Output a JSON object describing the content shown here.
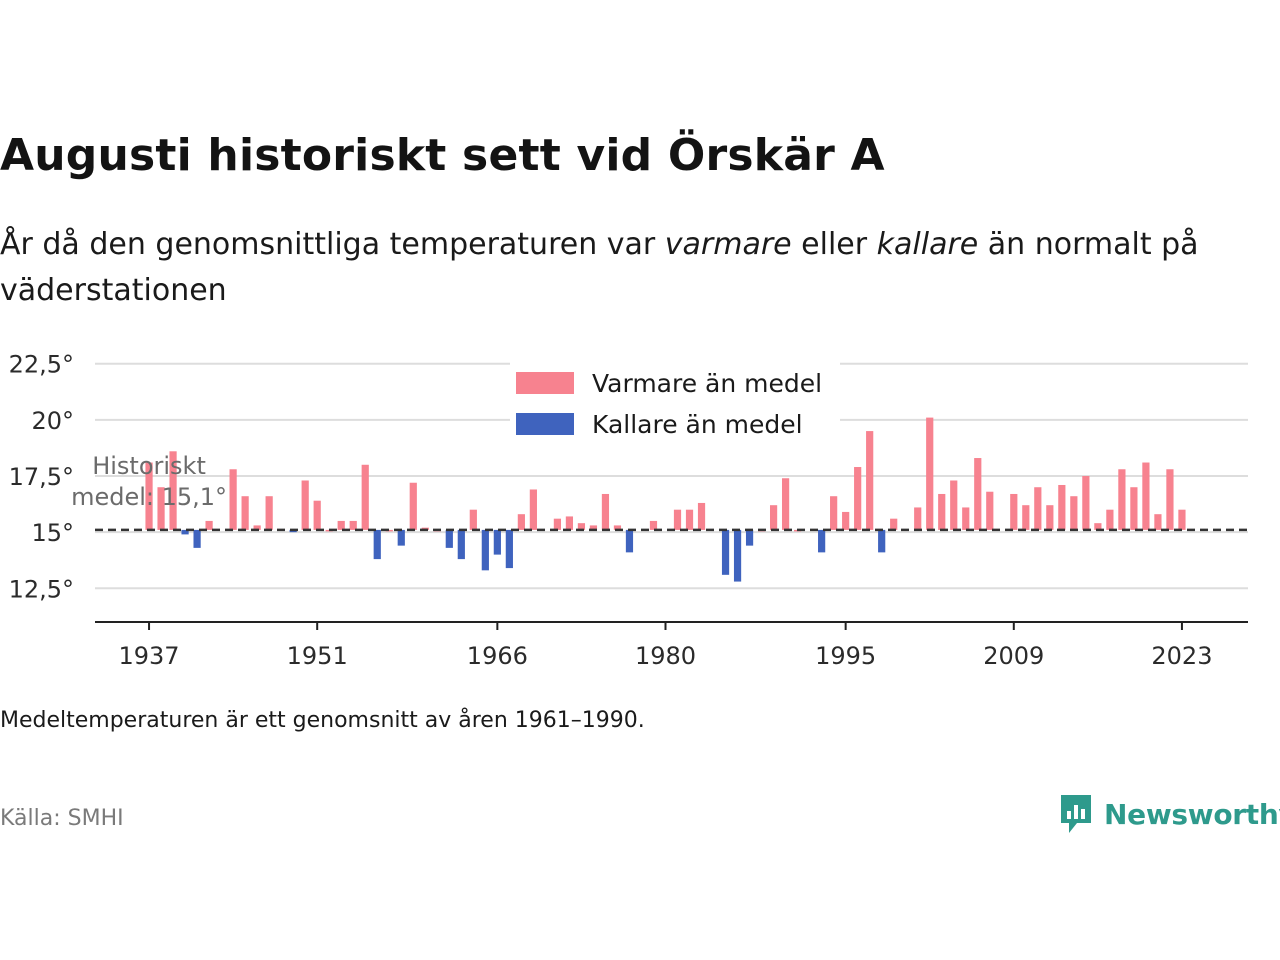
{
  "header": {
    "title": "Augusti historiskt sett vid Örskär A",
    "subtitle_parts": [
      "År då den genomsnittliga temperaturen var ",
      "varmare",
      " eller ",
      "kallare",
      " än normalt på väderstationen"
    ]
  },
  "footer": {
    "note": "Medeltemperaturen är ett genomsnitt av åren 1961–1990.",
    "source": "Källa: SMHI",
    "brand": "Newsworthy"
  },
  "colors": {
    "warm": "#f7828f",
    "cold": "#3f63be",
    "baseline": "#333333",
    "grid": "#dddddd",
    "brand": "#2e9a8c"
  },
  "icons": {
    "brand_logo": "newsworthy-logo-icon"
  },
  "chart_data": {
    "type": "bar",
    "title": "Augusti historiskt sett vid Örskär A",
    "ylim": [
      11,
      24
    ],
    "xlim": [
      1932.5,
      2028.5
    ],
    "baseline": 15.1,
    "y_ticks": [
      12.5,
      15,
      17.5,
      20,
      22.5
    ],
    "y_tick_labels": [
      "12,5°",
      "15°",
      "17,5°",
      "20°",
      "22,5°"
    ],
    "x_ticks": [
      1937,
      1951,
      1966,
      1980,
      1995,
      2009,
      2023
    ],
    "x_tick_labels": [
      "1937",
      "1951",
      "1966",
      "1980",
      "1995",
      "2009",
      "2023"
    ],
    "grid": true,
    "legend": {
      "position": "top-center",
      "items": [
        {
          "label": "Varmare än medel",
          "key": "warm"
        },
        {
          "label": "Kallare än medel",
          "key": "cold"
        }
      ]
    },
    "annotation": {
      "lines": [
        "Historiskt",
        "medel: 15,1°"
      ],
      "year": 1937,
      "value": 17.6
    },
    "x": [
      1937,
      1938,
      1939,
      1940,
      1941,
      1942,
      1944,
      1945,
      1946,
      1947,
      1949,
      1950,
      1951,
      1952,
      1953,
      1954,
      1955,
      1956,
      1957,
      1958,
      1959,
      1960,
      1961,
      1962,
      1963,
      1964,
      1965,
      1966,
      1967,
      1968,
      1969,
      1971,
      1972,
      1973,
      1974,
      1975,
      1976,
      1977,
      1979,
      1981,
      1982,
      1983,
      1985,
      1986,
      1987,
      1988,
      1989,
      1990,
      1991,
      1993,
      1994,
      1995,
      1996,
      1997,
      1998,
      1999,
      2001,
      2002,
      2003,
      2004,
      2005,
      2006,
      2007,
      2009,
      2010,
      2011,
      2012,
      2013,
      2014,
      2015,
      2016,
      2017,
      2018,
      2019,
      2020,
      2021,
      2022,
      2023
    ],
    "values": [
      18.1,
      17.0,
      18.6,
      14.9,
      14.3,
      15.5,
      17.8,
      16.6,
      15.3,
      16.6,
      15.0,
      17.3,
      16.4,
      15.1,
      15.5,
      15.5,
      18.0,
      13.8,
      15.1,
      14.4,
      17.2,
      15.2,
      15.1,
      14.3,
      13.8,
      16.0,
      13.3,
      14.0,
      13.4,
      15.8,
      16.9,
      15.6,
      15.7,
      15.4,
      15.3,
      16.7,
      15.3,
      14.1,
      15.5,
      16.0,
      16.0,
      16.3,
      13.1,
      12.8,
      14.4,
      15.1,
      16.2,
      17.4,
      15.1,
      14.1,
      16.6,
      15.9,
      17.9,
      19.5,
      14.1,
      15.6,
      16.1,
      20.1,
      16.7,
      17.3,
      16.1,
      18.3,
      16.8,
      16.7,
      16.2,
      17.0,
      16.2,
      17.1,
      16.6,
      17.5,
      15.4,
      16.0,
      17.8,
      17.0,
      18.1,
      15.8,
      17.8,
      16.0
    ]
  }
}
